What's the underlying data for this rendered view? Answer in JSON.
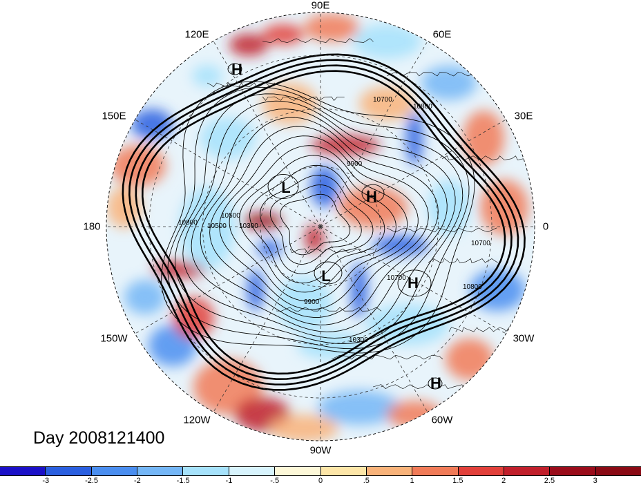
{
  "map": {
    "projection": "polar-stereographic-north",
    "fill_field_levels": [
      "-3",
      "-2.5",
      "-2",
      "-1.5",
      "-1",
      "-.5",
      "0",
      ".5",
      "1",
      "1.5",
      "2",
      "2.5",
      "3"
    ],
    "fill_colors": [
      "#1b10c8",
      "#2a5fe0",
      "#4a8ef0",
      "#74b6f6",
      "#a6e2fb",
      "#d8f4fd",
      "#fdf8d8",
      "#fde6a8",
      "#f9b37a",
      "#f17b58",
      "#e2403a",
      "#c11f2b",
      "#9a0c1a"
    ],
    "longitude_labels": [
      "90E",
      "60E",
      "30E",
      "0",
      "30W",
      "60W",
      "90W",
      "120W",
      "150W",
      "180",
      "150E",
      "120E"
    ],
    "contour_labels": [
      "10700",
      "10800",
      "9900",
      "10500",
      "10300",
      "10800",
      "10700",
      "10700",
      "10800",
      "9900",
      "10500",
      "10300"
    ],
    "pressure_centers": [
      {
        "label": "H"
      },
      {
        "label": "L"
      },
      {
        "label": "H"
      },
      {
        "label": "L"
      },
      {
        "label": "H"
      },
      {
        "label": "H"
      }
    ],
    "date_label": "Day 2008121400"
  },
  "colorbar": {
    "tick_labels": [
      "-3",
      "-2.5",
      "-2",
      "-1.5",
      "-1",
      "-.5",
      "0",
      ".5",
      "1",
      "1.5",
      "2",
      "2.5",
      "3"
    ]
  }
}
